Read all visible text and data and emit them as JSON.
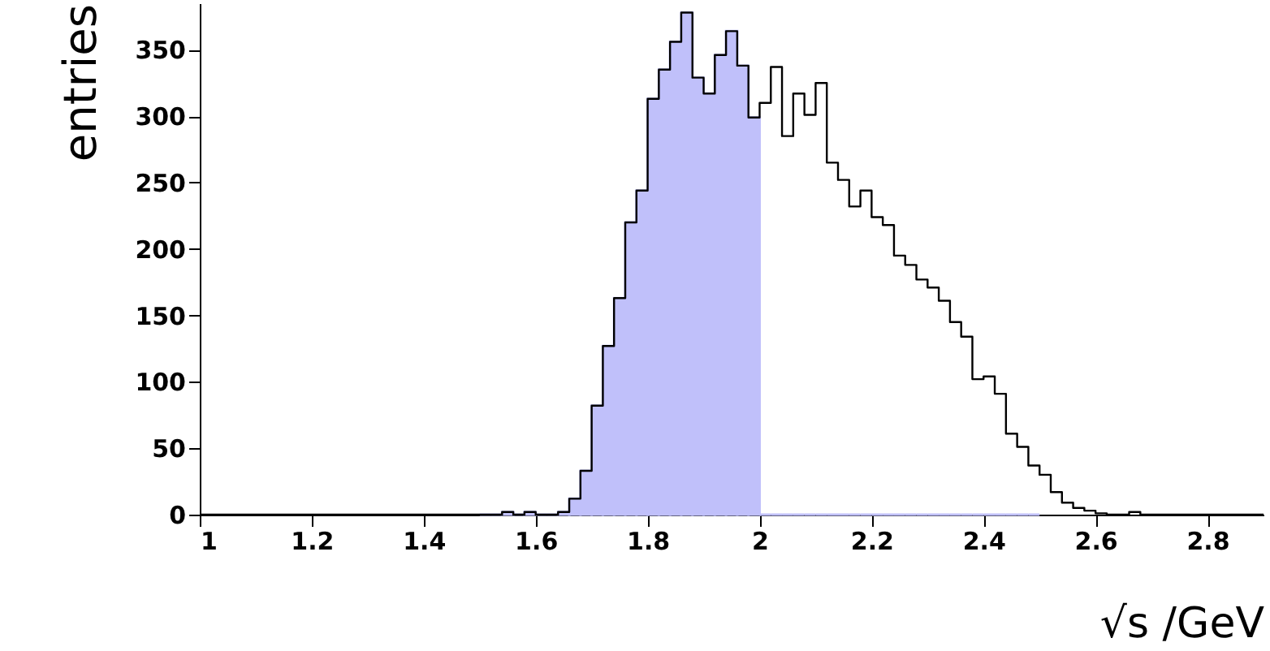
{
  "chart_data": {
    "type": "histogram",
    "xlabel": "√s /GeV",
    "ylabel": "entries",
    "series": [
      {
        "color": "#c0c0fa",
        "bins": [
          1.5,
          1.52,
          1.54,
          1.56,
          1.58,
          1.6,
          1.62,
          1.64,
          1.66,
          1.68,
          1.7,
          1.72,
          1.74,
          1.76,
          1.78,
          1.8,
          1.82,
          1.84,
          1.86,
          1.88,
          1.9,
          1.92,
          1.94,
          1.96,
          1.98,
          2.0,
          2.02,
          2.04,
          2.06,
          2.08,
          2.1,
          2.12,
          2.14,
          2.16,
          2.18,
          2.2,
          2.22,
          2.24,
          2.26,
          2.28,
          2.3,
          2.32,
          2.34,
          2.36,
          2.38,
          2.4,
          2.42,
          2.44,
          2.46,
          2.48,
          2.5
        ],
        "values": [
          0,
          0,
          2,
          0,
          2,
          0,
          0,
          2,
          12,
          33,
          82,
          127,
          163,
          220,
          244,
          313,
          335,
          356,
          378,
          329,
          317,
          346,
          364,
          338,
          299,
          0,
          0,
          0,
          0,
          0,
          0,
          0,
          0,
          0,
          0,
          0,
          0,
          0,
          0,
          0,
          0,
          0,
          0,
          0,
          0,
          0,
          0,
          0,
          0,
          0
        ]
      },
      {
        "color": "#000000",
        "type": "step",
        "x": [
          1.0,
          1.02,
          1.04,
          1.06,
          1.08,
          1.1,
          1.12,
          1.14,
          1.16,
          1.18,
          1.2,
          1.22,
          1.24,
          1.26,
          1.28,
          1.3,
          1.32,
          1.34,
          1.36,
          1.38,
          1.4,
          1.42,
          1.44,
          1.46,
          1.48,
          1.5,
          1.52,
          1.54,
          1.56,
          1.58,
          1.6,
          1.62,
          1.64,
          1.66,
          1.68,
          1.7,
          1.72,
          1.74,
          1.76,
          1.78,
          1.8,
          1.82,
          1.84,
          1.86,
          1.88,
          1.9,
          1.92,
          1.94,
          1.96,
          1.98,
          2.0,
          2.02,
          2.04,
          2.06,
          2.08,
          2.1,
          2.12,
          2.14,
          2.16,
          2.18,
          2.2,
          2.22,
          2.24,
          2.26,
          2.28,
          2.3,
          2.32,
          2.34,
          2.36,
          2.38,
          2.4,
          2.42,
          2.44,
          2.46,
          2.48,
          2.5,
          2.52,
          2.54,
          2.56,
          2.58,
          2.6,
          2.62,
          2.64,
          2.66,
          2.68,
          2.7,
          2.72,
          2.74,
          2.76,
          2.78,
          2.8,
          2.82,
          2.84,
          2.86,
          2.88,
          2.9
        ],
        "values": [
          0,
          0,
          0,
          0,
          0,
          0,
          0,
          0,
          0,
          0,
          0,
          0,
          0,
          0,
          0,
          0,
          0,
          0,
          0,
          0,
          0,
          0,
          0,
          0,
          0,
          0,
          0,
          2,
          0,
          2,
          0,
          0,
          2,
          12,
          33,
          82,
          127,
          163,
          220,
          244,
          313,
          335,
          356,
          378,
          329,
          317,
          346,
          364,
          338,
          299,
          310,
          337,
          285,
          317,
          301,
          325,
          265,
          252,
          232,
          244,
          224,
          218,
          195,
          188,
          177,
          171,
          161,
          145,
          134,
          102,
          104,
          91,
          61,
          51,
          37,
          30,
          17,
          9,
          5,
          3,
          1,
          0,
          0,
          2,
          0,
          0,
          0,
          0,
          0,
          0,
          0,
          0,
          0,
          0,
          0,
          0
        ]
      }
    ],
    "xlim": [
      1,
      2.9
    ],
    "ylim": [
      0,
      385
    ],
    "xticks": [
      1,
      1.2,
      1.4,
      1.6,
      1.8,
      2,
      2.2,
      2.4,
      2.6,
      2.8
    ],
    "yticks": [
      0,
      50,
      100,
      150,
      200,
      250,
      300,
      350
    ],
    "grid": false
  }
}
